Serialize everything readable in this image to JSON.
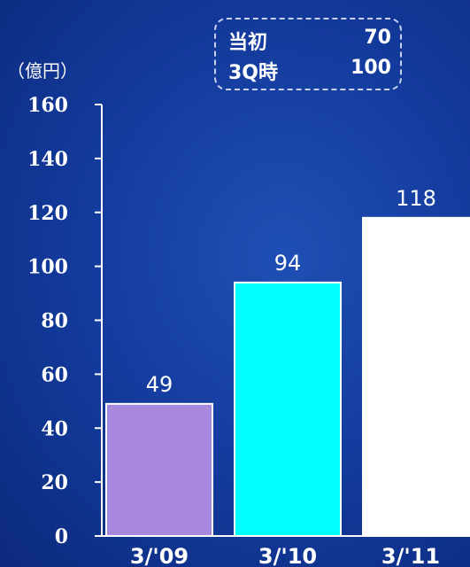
{
  "unit_label": "（億円）",
  "legend": {
    "rows": [
      {
        "label": "当初",
        "value": "70"
      },
      {
        "label": "3Q時",
        "value": "100"
      }
    ]
  },
  "colors": {
    "background": "#12399a",
    "axis": "#ffffff",
    "bars": [
      "#a888dc",
      "#00ffff",
      "#ffffff"
    ],
    "bar_border": "#ffffff"
  },
  "chart_data": {
    "type": "bar",
    "categories": [
      "3/'09",
      "3/'10",
      "3/'11"
    ],
    "values": [
      49,
      94,
      118
    ],
    "data_labels": [
      "49",
      "94",
      "118"
    ],
    "ylim": [
      0,
      160
    ],
    "yticks": [
      0,
      20,
      40,
      60,
      80,
      100,
      120,
      140,
      160
    ],
    "grid": false
  }
}
